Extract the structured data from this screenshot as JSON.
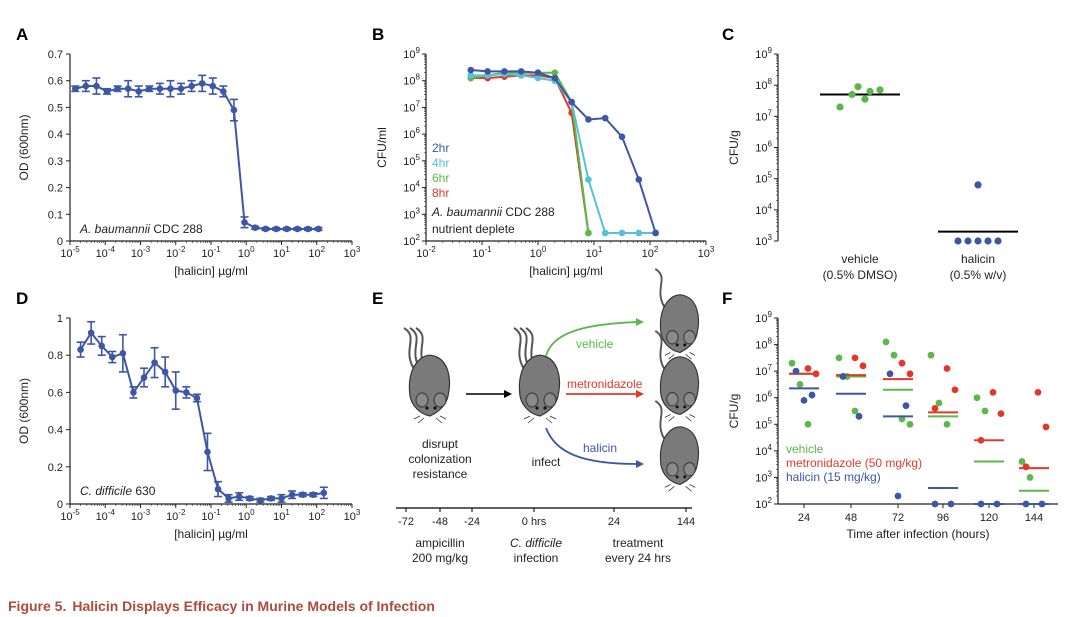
{
  "colors": {
    "blue": "#3d56a6",
    "cyan": "#55c2d8",
    "green": "#5cb84a",
    "red": "#e0392b",
    "grey": "#7a7a7a",
    "axis": "#222222",
    "caption": "#b04a3c"
  },
  "caption": {
    "label": "Figure 5.",
    "title": "Halicin Displays Efficacy in Murine Models of Infection"
  },
  "chart_data": [
    {
      "panel": "A",
      "type": "line",
      "xscale": "log",
      "xlim_exp": [
        -5,
        3
      ],
      "xticks": [
        "10-5",
        "10-4",
        "10-3",
        "10-2",
        "10-1",
        "100",
        "101",
        "102",
        "103"
      ],
      "ylim": [
        0,
        0.7
      ],
      "yticks": [
        "0",
        "0.1",
        "0.2",
        "0.3",
        "0.4",
        "0.5",
        "0.6",
        "0.7"
      ],
      "ytick_values": [
        0,
        0.1,
        0.2,
        0.3,
        0.4,
        0.5,
        0.6,
        0.7
      ],
      "xlabel": "[halicin] µg/ml",
      "ylabel": "OD (600nm)",
      "annotation": {
        "italic": "A. baumannii",
        "rest": " CDC 288"
      },
      "series": [
        {
          "name": "A. baumannii CDC 288",
          "color": "#3d56a6",
          "x_exp": [
            -4.85,
            -4.55,
            -4.25,
            -3.95,
            -3.65,
            -3.35,
            -3.05,
            -2.75,
            -2.45,
            -2.15,
            -1.85,
            -1.55,
            -1.25,
            -0.95,
            -0.65,
            -0.35,
            -0.05,
            0.25,
            0.55,
            0.85,
            1.15,
            1.45,
            1.75,
            2.05
          ],
          "y": [
            0.57,
            0.58,
            0.58,
            0.56,
            0.57,
            0.57,
            0.56,
            0.57,
            0.57,
            0.57,
            0.57,
            0.58,
            0.59,
            0.58,
            0.56,
            0.49,
            0.07,
            0.05,
            0.045,
            0.045,
            0.045,
            0.045,
            0.045,
            0.045
          ],
          "err": [
            0.01,
            0.02,
            0.03,
            0.01,
            0.01,
            0.03,
            0.02,
            0.01,
            0.02,
            0.03,
            0.02,
            0.02,
            0.03,
            0.03,
            0.02,
            0.04,
            0.02,
            0.005,
            0.005,
            0.005,
            0.005,
            0.005,
            0.005,
            0.005
          ]
        }
      ]
    },
    {
      "panel": "B",
      "type": "line",
      "xscale": "log",
      "yscale": "log",
      "xlim_exp": [
        -2,
        3
      ],
      "ylim_exp": [
        2,
        9
      ],
      "xticks": [
        "10-2",
        "10-1",
        "100",
        "101",
        "102",
        "103"
      ],
      "yticks": [
        "102",
        "103",
        "104",
        "105",
        "106",
        "107",
        "108",
        "109"
      ],
      "xlabel": "[halicin] µg/ml",
      "ylabel": "CFU/ml",
      "annotation": {
        "italic": "A. baumannii",
        "rest": " CDC 288",
        "line2": "nutrient deplete"
      },
      "legend": [
        "2hr",
        "4hr",
        "6hr",
        "8hr"
      ],
      "series": [
        {
          "name": "2hr",
          "color": "#3d56a6",
          "x_exp": [
            -1.2,
            -0.9,
            -0.6,
            -0.3,
            0.0,
            0.3,
            0.6,
            0.9,
            1.2,
            1.5,
            1.8,
            2.1
          ],
          "y_exp": [
            8.4,
            8.35,
            8.35,
            8.35,
            8.3,
            8.1,
            7.2,
            6.55,
            6.6,
            5.9,
            4.3,
            2.3
          ]
        },
        {
          "name": "4hr",
          "color": "#55c2d8",
          "x_exp": [
            -1.2,
            -0.9,
            -0.6,
            -0.3,
            0.0,
            0.3,
            0.6,
            0.9,
            1.2,
            1.5,
            1.8,
            2.1
          ],
          "y_exp": [
            8.2,
            8.2,
            8.25,
            8.2,
            8.1,
            8.0,
            7.2,
            4.3,
            2.3,
            2.3,
            2.3,
            2.3
          ]
        },
        {
          "name": "6hr",
          "color": "#5cb84a",
          "x_exp": [
            -1.2,
            -0.9,
            -0.6,
            -0.3,
            0.0,
            0.3,
            0.6,
            0.9
          ],
          "y_exp": [
            8.1,
            8.2,
            8.3,
            8.3,
            8.3,
            8.3,
            7.2,
            2.3
          ]
        },
        {
          "name": "8hr",
          "color": "#e0392b",
          "x_exp": [
            -1.2,
            -0.9,
            -0.6,
            -0.3,
            0.0,
            0.3,
            0.6,
            0.9
          ],
          "y_exp": [
            8.1,
            8.1,
            8.15,
            8.2,
            8.2,
            8.1,
            6.8,
            2.3
          ]
        }
      ]
    },
    {
      "panel": "C",
      "type": "scatter",
      "yscale": "log",
      "ylim_exp": [
        3,
        9
      ],
      "yticks": [
        "103",
        "104",
        "105",
        "106",
        "107",
        "108",
        "109"
      ],
      "ylabel": "CFU/g",
      "categories": [
        {
          "line1": "vehicle",
          "line2": "(0.5% DMSO)"
        },
        {
          "line1": "halicin",
          "line2": "(0.5% w/v)"
        }
      ],
      "groups": [
        {
          "color": "#5cb84a",
          "points_exp": [
            7.3,
            7.55,
            7.7,
            7.8,
            7.85,
            7.95
          ],
          "mean_exp": 7.7
        },
        {
          "color": "#3d56a6",
          "points_exp": [
            3.0,
            3.0,
            3.0,
            3.0,
            3.0,
            4.8
          ],
          "mean_exp": 3.3
        }
      ]
    },
    {
      "panel": "D",
      "type": "line",
      "xscale": "log",
      "xlim_exp": [
        -5,
        3
      ],
      "xticks": [
        "10-5",
        "10-4",
        "10-3",
        "10-2",
        "10-1",
        "100",
        "101",
        "102",
        "103"
      ],
      "ylim": [
        0,
        1
      ],
      "yticks": [
        "0",
        "0.2",
        "0.4",
        "0.6",
        "0.8",
        "1"
      ],
      "ytick_values": [
        0,
        0.2,
        0.4,
        0.6,
        0.8,
        1.0
      ],
      "xlabel": "[halicin] µg/ml",
      "ylabel": "OD (600nm)",
      "annotation": {
        "italic": "C. difficile",
        "rest": " 630"
      },
      "series": [
        {
          "name": "C. difficile 630",
          "color": "#3d56a6",
          "x_exp": [
            -4.7,
            -4.4,
            -4.1,
            -3.8,
            -3.5,
            -3.2,
            -2.9,
            -2.6,
            -2.3,
            -2.0,
            -1.7,
            -1.4,
            -1.1,
            -0.8,
            -0.5,
            -0.2,
            0.1,
            0.4,
            0.7,
            1.0,
            1.3,
            1.6,
            1.9,
            2.2
          ],
          "y": [
            0.83,
            0.92,
            0.85,
            0.79,
            0.81,
            0.6,
            0.68,
            0.76,
            0.71,
            0.61,
            0.6,
            0.57,
            0.28,
            0.08,
            0.03,
            0.04,
            0.03,
            0.02,
            0.03,
            0.03,
            0.05,
            0.05,
            0.05,
            0.06
          ],
          "err": [
            0.04,
            0.06,
            0.05,
            0.03,
            0.1,
            0.03,
            0.05,
            0.08,
            0.08,
            0.1,
            0.03,
            0.02,
            0.1,
            0.04,
            0.02,
            0.02,
            0.01,
            0.01,
            0.01,
            0.02,
            0.02,
            0.01,
            0.01,
            0.03
          ]
        }
      ]
    },
    {
      "panel": "F",
      "type": "scatter",
      "yscale": "log",
      "ylim_exp": [
        2,
        9
      ],
      "yticks": [
        "102",
        "103",
        "104",
        "105",
        "106",
        "107",
        "108",
        "109"
      ],
      "xticks": [
        "24",
        "48",
        "72",
        "96",
        "120",
        "144"
      ],
      "xlabel": "Time after infection (hours)",
      "ylabel": "CFU/g",
      "legend": [
        {
          "label": "vehicle",
          "color": "#5cb84a"
        },
        {
          "label": "metronidazole (50 mg/kg)",
          "color": "#e0392b"
        },
        {
          "label": "halicin (15 mg/kg)",
          "color": "#3d56a6"
        }
      ],
      "series": [
        {
          "name": "vehicle",
          "color": "#5cb84a",
          "points": [
            [
              0,
              7.3
            ],
            [
              0,
              6.5
            ],
            [
              0,
              5.0
            ],
            [
              1,
              7.5
            ],
            [
              1,
              6.8
            ],
            [
              1,
              5.5
            ],
            [
              2,
              8.1
            ],
            [
              2,
              7.6
            ],
            [
              2,
              5.2
            ],
            [
              2,
              5.0
            ],
            [
              3,
              7.6
            ],
            [
              3,
              5.8
            ],
            [
              3,
              5.0
            ],
            [
              4,
              6.0
            ],
            [
              4,
              5.5
            ],
            [
              5,
              3.6
            ],
            [
              5,
              3.0
            ]
          ],
          "means": [
            6.9,
            6.8,
            6.3,
            5.3,
            3.6,
            2.5
          ]
        },
        {
          "name": "metronidazole (50 mg/kg)",
          "color": "#e0392b",
          "points": [
            [
              0,
              7.1
            ],
            [
              0,
              6.9
            ],
            [
              1,
              7.5
            ],
            [
              1,
              7.2
            ],
            [
              2,
              7.3
            ],
            [
              2,
              6.9
            ],
            [
              3,
              7.1
            ],
            [
              3,
              6.3
            ],
            [
              3,
              5.6
            ],
            [
              4,
              6.2
            ],
            [
              4,
              5.4
            ],
            [
              4,
              4.4
            ],
            [
              5,
              6.2
            ],
            [
              5,
              4.9
            ],
            [
              5,
              3.4
            ]
          ],
          "means": [
            6.9,
            6.85,
            6.7,
            5.45,
            4.4,
            3.35
          ]
        },
        {
          "name": "halicin (15 mg/kg)",
          "color": "#3d56a6",
          "points": [
            [
              0,
              7.0
            ],
            [
              0,
              6.1
            ],
            [
              0,
              5.9
            ],
            [
              1,
              6.8
            ],
            [
              1,
              5.3
            ],
            [
              2,
              6.9
            ],
            [
              2,
              5.7
            ],
            [
              2,
              2.3
            ],
            [
              3,
              2.0
            ],
            [
              3,
              2.0
            ],
            [
              4,
              2.0
            ],
            [
              4,
              2.0
            ],
            [
              5,
              2.0
            ],
            [
              5,
              2.0
            ]
          ],
          "means": [
            6.35,
            6.15,
            5.3,
            2.6,
            2.0,
            2.0
          ]
        }
      ]
    }
  ],
  "schematic": {
    "panel": "E",
    "arrow_labels": [
      "vehicle",
      "metronidazole",
      "halicin"
    ],
    "arrow_colors": [
      "#5cb84a",
      "#e0392b",
      "#3d56a6"
    ],
    "step1": [
      "disrupt",
      "colonization",
      "resistance"
    ],
    "step2": "infect",
    "timeline_ticks": [
      "-72",
      "-48",
      "-24",
      "0 hrs",
      "24",
      "144"
    ],
    "sub1": [
      "ampicillin",
      "200 mg/kg"
    ],
    "sub2_italic": "C. difficile",
    "sub2_rest": "infection",
    "sub3": [
      "treatment",
      "every 24 hrs"
    ]
  }
}
